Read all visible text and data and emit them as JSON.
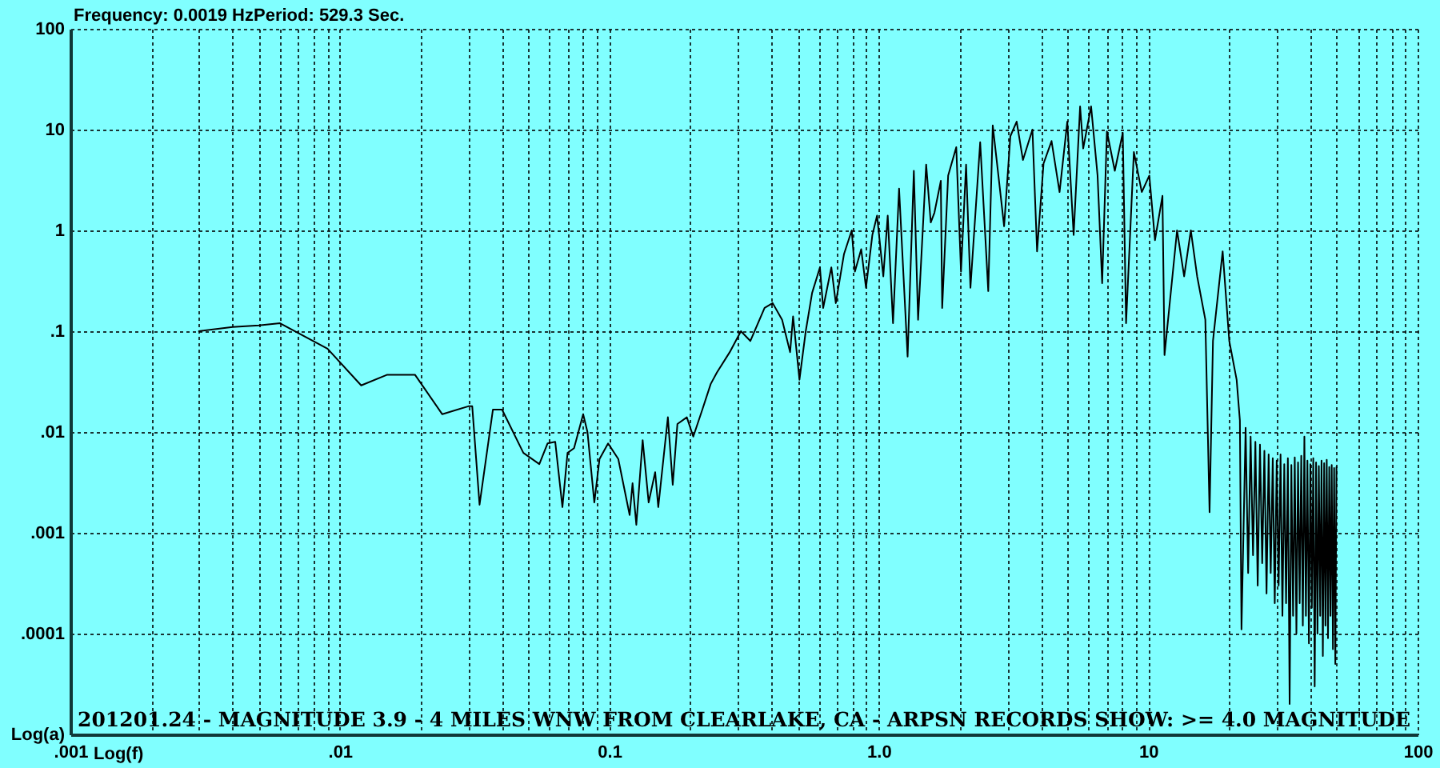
{
  "chart_data": {
    "type": "line",
    "title": "201201.24 - MAGNITUDE 3.9 - 4 MILES WNW FROM CLEARLAKE, CA - ARPSN RECORDS SHOW: >= 4.0 MAGNITUDE",
    "xlabel": "Log(f)",
    "ylabel": "Log(a)",
    "annotations": [
      "Frequency: 0.0019 HzPeriod: 529.3 Sec."
    ],
    "log": "xy",
    "grid": true,
    "xlim": [
      0.001,
      100
    ],
    "ylim": [
      1e-05,
      100
    ],
    "xticks": [
      {
        "value": 0.001,
        "label": ".001"
      },
      {
        "value": 0.002,
        "label": null
      },
      {
        "value": 0.003,
        "label": null
      },
      {
        "value": 0.004,
        "label": null
      },
      {
        "value": 0.005,
        "label": null
      },
      {
        "value": 0.006,
        "label": null
      },
      {
        "value": 0.007,
        "label": null
      },
      {
        "value": 0.008,
        "label": null
      },
      {
        "value": 0.009,
        "label": null
      },
      {
        "value": 0.01,
        "label": ".01"
      },
      {
        "value": 0.02,
        "label": null
      },
      {
        "value": 0.03,
        "label": null
      },
      {
        "value": 0.04,
        "label": null
      },
      {
        "value": 0.05,
        "label": null
      },
      {
        "value": 0.06,
        "label": null
      },
      {
        "value": 0.07,
        "label": null
      },
      {
        "value": 0.08,
        "label": null
      },
      {
        "value": 0.09,
        "label": null
      },
      {
        "value": 0.1,
        "label": "0.1"
      },
      {
        "value": 0.2,
        "label": null
      },
      {
        "value": 0.3,
        "label": null
      },
      {
        "value": 0.4,
        "label": null
      },
      {
        "value": 0.5,
        "label": null
      },
      {
        "value": 0.6,
        "label": null
      },
      {
        "value": 0.7,
        "label": null
      },
      {
        "value": 0.8,
        "label": null
      },
      {
        "value": 0.9,
        "label": null
      },
      {
        "value": 1,
        "label": "1.0"
      },
      {
        "value": 2,
        "label": null
      },
      {
        "value": 3,
        "label": null
      },
      {
        "value": 4,
        "label": null
      },
      {
        "value": 5,
        "label": null
      },
      {
        "value": 6,
        "label": null
      },
      {
        "value": 7,
        "label": null
      },
      {
        "value": 8,
        "label": null
      },
      {
        "value": 9,
        "label": null
      },
      10,
      {
        "value": 20,
        "label": null
      },
      {
        "value": 30,
        "label": null
      },
      {
        "value": 40,
        "label": null
      },
      {
        "value": 50,
        "label": null
      },
      {
        "value": 60,
        "label": null
      },
      {
        "value": 70,
        "label": null
      },
      {
        "value": 80,
        "label": null
      },
      {
        "value": 90,
        "label": null
      },
      100
    ],
    "yticks": [
      100,
      10,
      1,
      {
        "value": 0.1,
        "label": ".1"
      },
      {
        "value": 0.01,
        "label": ".01"
      },
      {
        "value": 0.001,
        "label": ".001"
      },
      {
        "value": 0.0001,
        "label": ".0001"
      }
    ],
    "x": [
      0.003,
      0.004,
      0.005,
      0.006,
      0.009,
      0.012,
      0.015,
      0.019,
      0.024,
      0.03,
      0.031,
      0.033,
      0.037,
      0.04,
      0.048,
      0.055,
      0.059,
      0.063,
      0.067,
      0.07,
      0.074,
      0.08,
      0.083,
      0.088,
      0.092,
      0.099,
      0.108,
      0.119,
      0.122,
      0.126,
      0.133,
      0.14,
      0.148,
      0.152,
      0.165,
      0.172,
      0.179,
      0.194,
      0.205,
      0.222,
      0.238,
      0.251,
      0.28,
      0.308,
      0.334,
      0.377,
      0.404,
      0.438,
      0.469,
      0.481,
      0.508,
      0.536,
      0.566,
      0.605,
      0.622,
      0.667,
      0.693,
      0.743,
      0.794,
      0.816,
      0.861,
      0.897,
      0.947,
      0.986,
      1.04,
      1.08,
      1.13,
      1.19,
      1.28,
      1.35,
      1.4,
      1.5,
      1.56,
      1.61,
      1.7,
      1.72,
      1.81,
      1.94,
      2.02,
      2.11,
      2.19,
      2.38,
      2.55,
      2.65,
      2.92,
      3.08,
      3.25,
      3.43,
      3.72,
      3.87,
      4.09,
      4.38,
      4.69,
      5.01,
      5.29,
      5.59,
      5.74,
      6.14,
      6.49,
      6.75,
      7.03,
      7.52,
      8.05,
      8.28,
      8.85,
      9.47,
      10.1,
      10.6,
      11.3,
      11.5,
      12.8,
      13.6,
      14.4,
      15.2,
      16.3,
      16.9,
      17.4,
      18.9,
      20.0,
      21.3,
      21.9,
      22.2,
      23,
      23.5,
      24,
      24.5,
      25,
      25.5,
      26,
      26.5,
      27,
      27.5,
      28,
      28.5,
      29,
      29.5,
      30,
      30.5,
      31,
      31.5,
      32,
      32.5,
      33,
      33.5,
      34,
      34.5,
      35,
      35.5,
      36,
      36.5,
      37,
      37.5,
      38,
      38.5,
      39,
      39.5,
      40,
      40.5,
      41,
      41.5,
      42,
      42.5,
      43,
      43.5,
      44,
      44.5,
      45,
      45.5,
      46,
      46.5,
      47,
      47.5,
      48,
      48.5,
      49,
      49.5,
      50
    ],
    "series": [
      {
        "color": "#000000",
        "values": [
          0.1,
          0.11,
          0.114,
          0.12,
          0.067,
          0.029,
          0.037,
          0.037,
          0.015,
          0.018,
          0.018,
          0.0019,
          0.0167,
          0.0167,
          0.0062,
          0.0048,
          0.0077,
          0.008,
          0.0018,
          0.0062,
          0.0069,
          0.015,
          0.01,
          0.002,
          0.0054,
          0.0077,
          0.0054,
          0.0015,
          0.0031,
          0.0012,
          0.0083,
          0.002,
          0.004,
          0.0018,
          0.014,
          0.003,
          0.012,
          0.014,
          0.009,
          0.017,
          0.03,
          0.039,
          0.062,
          0.1,
          0.08,
          0.17,
          0.19,
          0.13,
          0.062,
          0.14,
          0.033,
          0.1,
          0.24,
          0.43,
          0.17,
          0.43,
          0.19,
          0.58,
          1.0,
          0.39,
          0.65,
          0.27,
          0.9,
          1.4,
          0.35,
          1.4,
          0.12,
          2.6,
          0.056,
          3.9,
          0.13,
          4.5,
          1.2,
          1.5,
          3.1,
          0.17,
          3.5,
          6.7,
          0.39,
          4.5,
          0.27,
          7.5,
          0.25,
          11,
          1.1,
          8.6,
          12,
          5,
          10,
          0.62,
          4.6,
          7.7,
          2.4,
          12,
          0.9,
          17,
          6.5,
          17,
          3.5,
          0.3,
          9.6,
          3.9,
          9.3,
          0.12,
          6.0,
          2.4,
          3.5,
          0.8,
          2.2,
          0.058,
          1.0,
          0.35,
          1.0,
          0.35,
          0.13,
          0.0016,
          0.08,
          0.62,
          0.08,
          0.033,
          0.013,
          0.00011,
          0.011,
          0.0004,
          0.009,
          0.0006,
          0.008,
          0.0003,
          0.0075,
          0.0005,
          0.0065,
          0.00025,
          0.006,
          0.0004,
          0.0055,
          0.0002,
          0.0052,
          0.0003,
          0.006,
          0.00015,
          0.0048,
          0.0002,
          0.0055,
          2e-05,
          0.0047,
          0.00015,
          0.0056,
          0.0001,
          0.005,
          0.0002,
          0.0058,
          0.00012,
          0.009,
          0.00015,
          0.0052,
          8e-05,
          0.0048,
          0.00018,
          0.0055,
          3e-05,
          0.005,
          0.0001,
          0.0046,
          0.00015,
          0.0052,
          6e-05,
          0.0049,
          0.00012,
          0.0053,
          9e-05,
          0.0045,
          0.00015,
          0.0047,
          7e-05,
          0.0044,
          5e-05,
          0.0045
        ]
      }
    ]
  }
}
